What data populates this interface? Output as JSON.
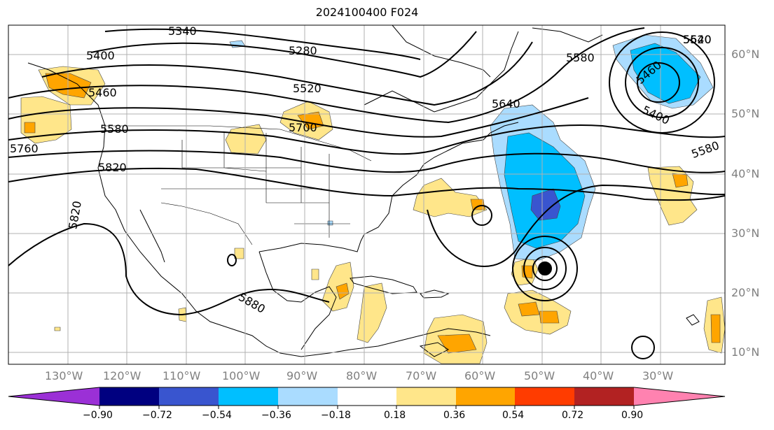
{
  "title": "2024100400 F024",
  "longitude_labels": [
    "130°W",
    "120°W",
    "110°W",
    "100°W",
    "90°W",
    "80°W",
    "70°W",
    "60°W",
    "50°W",
    "40°W",
    "30°W"
  ],
  "latitude_labels": [
    "60°N",
    "50°N",
    "40°N",
    "30°N",
    "20°N",
    "10°N"
  ],
  "contour_labels": [
    "5340",
    "5400",
    "5280",
    "5460",
    "5520",
    "5640",
    "5580",
    "5580",
    "5760",
    "5700",
    "5820",
    "5820",
    "5880",
    "5640",
    "5460",
    "5520",
    "5400",
    "5580"
  ],
  "colorbar": {
    "tick_labels": [
      "−0.90",
      "−0.72",
      "−0.54",
      "−0.36",
      "−0.18",
      "0.18",
      "0.36",
      "0.54",
      "0.72",
      "0.90"
    ],
    "colors": [
      "#9b30d6",
      "#000080",
      "#3955cf",
      "#00bfff",
      "#aadcff",
      "#ffffff",
      "#ffe68a",
      "#ffa500",
      "#ff3c00",
      "#b22222",
      "#ff82b0"
    ]
  }
}
